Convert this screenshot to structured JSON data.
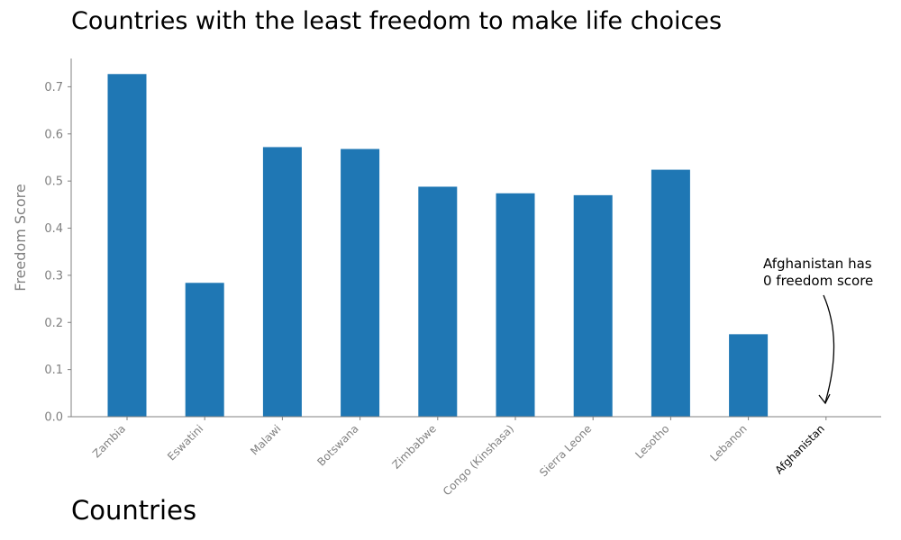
{
  "chart_data": {
    "type": "bar",
    "title": "Countries with the least freedom to make life choices",
    "xlabel": "Countries",
    "ylabel": "Freedom Score",
    "ylim": [
      0,
      0.76
    ],
    "yticks": [
      "0.0",
      "0.1",
      "0.2",
      "0.3",
      "0.4",
      "0.5",
      "0.6",
      "0.7"
    ],
    "categories": [
      "Zambia",
      "Eswatini",
      "Malawi",
      "Botswana",
      "Zimbabwe",
      "Congo (Kinshasa)",
      "Sierra Leone",
      "Lesotho",
      "Lebanon",
      "Afghanistan"
    ],
    "values": [
      0.727,
      0.284,
      0.572,
      0.568,
      0.488,
      0.474,
      0.47,
      0.524,
      0.175,
      0.0
    ],
    "grid": false,
    "annotation": {
      "lines": [
        "Afghanistan has",
        "0 freedom score"
      ],
      "target": "Afghanistan"
    },
    "colors": {
      "bar": "#1f77b4",
      "tick_label": "#808080",
      "highlight_label": "#000000",
      "axis": "#808080"
    }
  }
}
